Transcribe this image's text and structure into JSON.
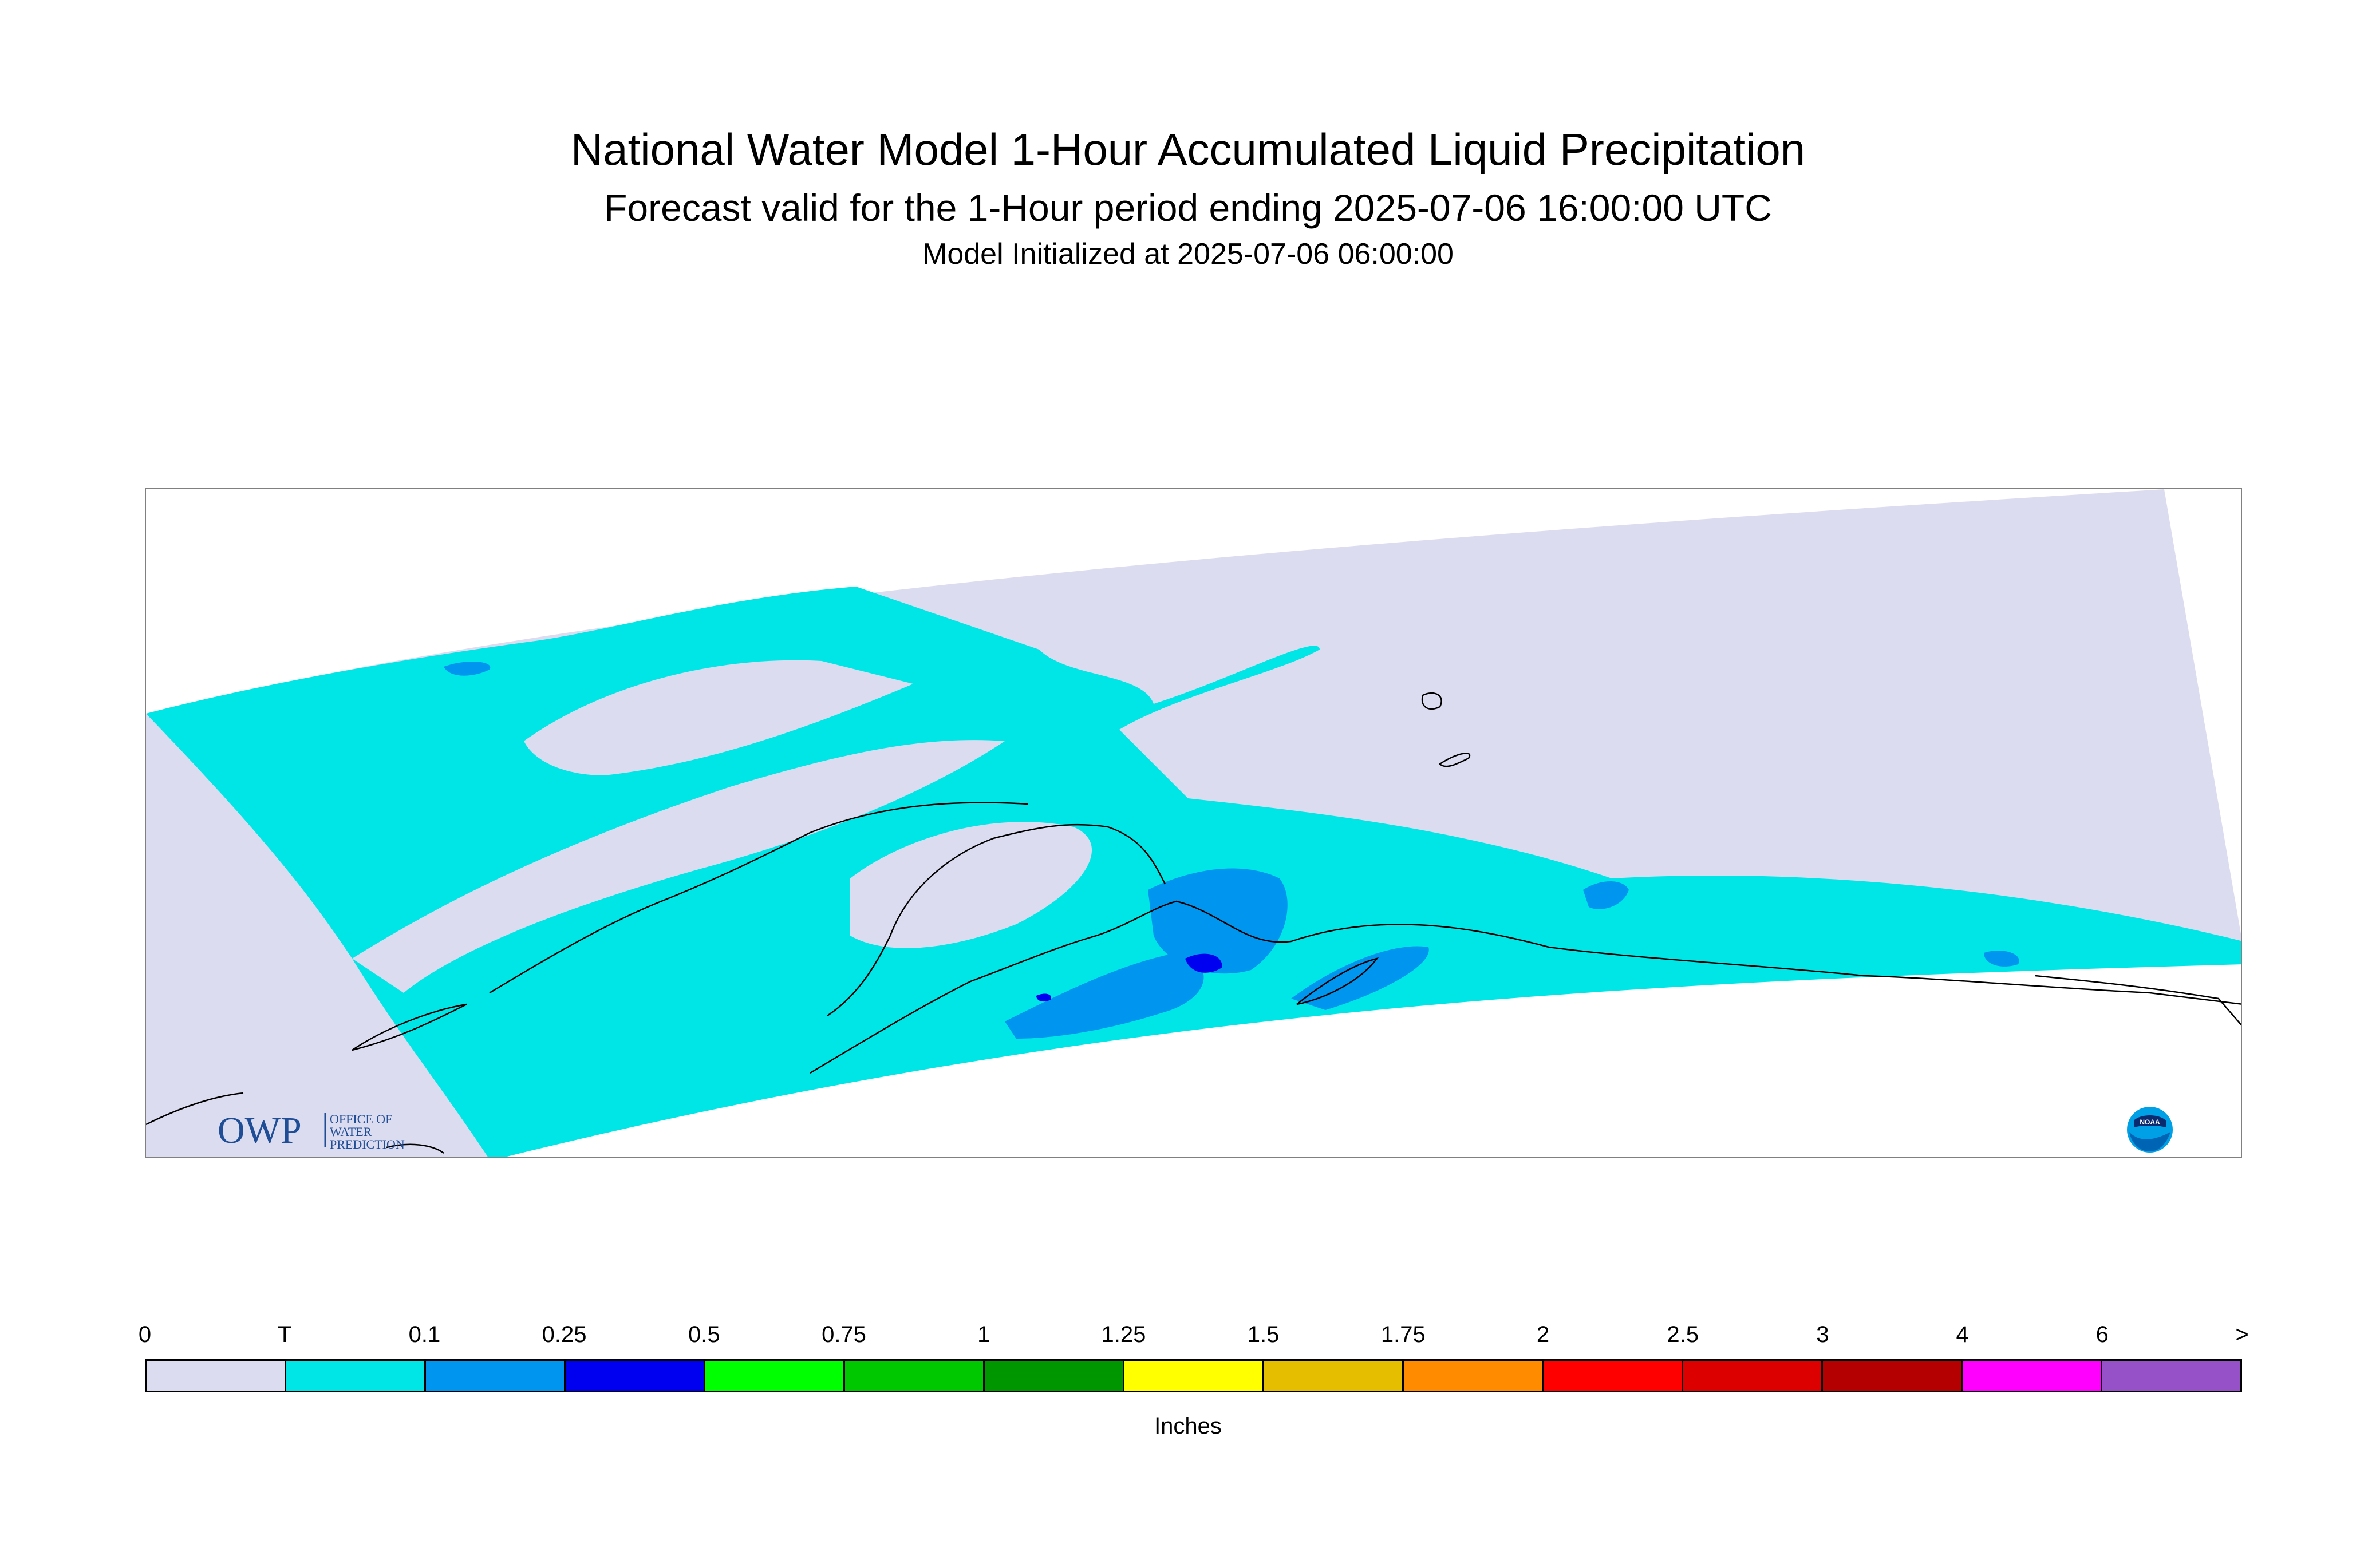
{
  "header": {
    "title": "National Water Model 1-Hour Accumulated Liquid Precipitation",
    "subtitle": "Forecast valid for the 1-Hour period ending 2025-07-06 16:00:00 UTC",
    "init": "Model Initialized at 2025-07-06 06:00:00"
  },
  "logos": {
    "owp_text": "OWP",
    "owp_line1": "OFFICE OF",
    "owp_line2": "WATER",
    "owp_line3": "PREDICTION",
    "noaa_text": "NOAA"
  },
  "colors": {
    "zero": "#dcdcf0",
    "trace": "#00e6e6",
    "light": "#0096f0",
    "moderate": "#0000f0",
    "coast": "#000000"
  },
  "legend": {
    "units": "Inches",
    "ticks": [
      "0",
      "T",
      "0.1",
      "0.25",
      "0.5",
      "0.75",
      "1",
      "1.25",
      "1.5",
      "1.75",
      "2",
      "2.5",
      "3",
      "4",
      "6",
      ">"
    ],
    "colors": [
      "#dcdcf0",
      "#00e6e6",
      "#0096f0",
      "#0000f0",
      "#00ff00",
      "#00c800",
      "#009600",
      "#ffff00",
      "#e6be00",
      "#ff8c00",
      "#ff0000",
      "#dc0000",
      "#b40000",
      "#ff00ff",
      "#9650c8"
    ]
  }
}
